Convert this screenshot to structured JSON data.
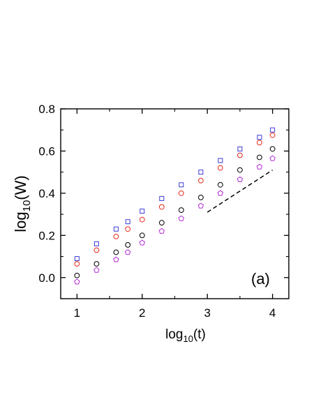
{
  "chart_data": {
    "type": "scatter",
    "xlabel": {
      "base": "log",
      "sub": "10",
      "arg": "(t)"
    },
    "ylabel": {
      "base": "log",
      "sub": "10",
      "arg": "(W)"
    },
    "xlim": [
      0.75,
      4.25
    ],
    "ylim": [
      -0.1,
      0.8
    ],
    "xticks": [
      1,
      2,
      3,
      4
    ],
    "xtick_labels": [
      "1",
      "2",
      "3",
      "4"
    ],
    "yticks": [
      0.0,
      0.2,
      0.4,
      0.6,
      0.8
    ],
    "ytick_labels": [
      "0.0",
      "0.2",
      "0.4",
      "0.6",
      "0.8"
    ],
    "grid": false,
    "annotation": "(a)",
    "series": [
      {
        "marker": "square",
        "color": "#3b3bd6",
        "x": [
          1.0,
          1.3,
          1.6,
          1.78,
          2.0,
          2.3,
          2.6,
          2.9,
          3.2,
          3.5,
          3.8,
          4.0
        ],
        "y": [
          0.09,
          0.16,
          0.23,
          0.265,
          0.315,
          0.375,
          0.44,
          0.5,
          0.555,
          0.61,
          0.665,
          0.7
        ]
      },
      {
        "marker": "circle",
        "color": "#e8291c",
        "x": [
          1.0,
          1.3,
          1.6,
          1.78,
          2.0,
          2.3,
          2.6,
          2.9,
          3.2,
          3.5,
          3.8,
          4.0
        ],
        "y": [
          0.065,
          0.13,
          0.195,
          0.23,
          0.275,
          0.335,
          0.4,
          0.46,
          0.52,
          0.58,
          0.64,
          0.675
        ]
      },
      {
        "marker": "circle",
        "color": "#000000",
        "x": [
          1.0,
          1.3,
          1.6,
          1.78,
          2.0,
          2.3,
          2.6,
          2.9,
          3.2,
          3.5,
          3.8,
          4.0
        ],
        "y": [
          0.01,
          0.065,
          0.12,
          0.155,
          0.2,
          0.26,
          0.32,
          0.38,
          0.44,
          0.51,
          0.57,
          0.61
        ]
      },
      {
        "marker": "pentagon",
        "color": "#b52ad6",
        "x": [
          1.0,
          1.3,
          1.6,
          1.78,
          2.0,
          2.3,
          2.6,
          2.9,
          3.2,
          3.5,
          3.8,
          4.0
        ],
        "y": [
          -0.02,
          0.035,
          0.085,
          0.12,
          0.165,
          0.22,
          0.28,
          0.34,
          0.4,
          0.465,
          0.525,
          0.565
        ]
      }
    ],
    "reference_line": {
      "style": "dashed",
      "color": "#000000",
      "x": [
        3.0,
        4.0
      ],
      "y": [
        0.31,
        0.51
      ]
    }
  }
}
